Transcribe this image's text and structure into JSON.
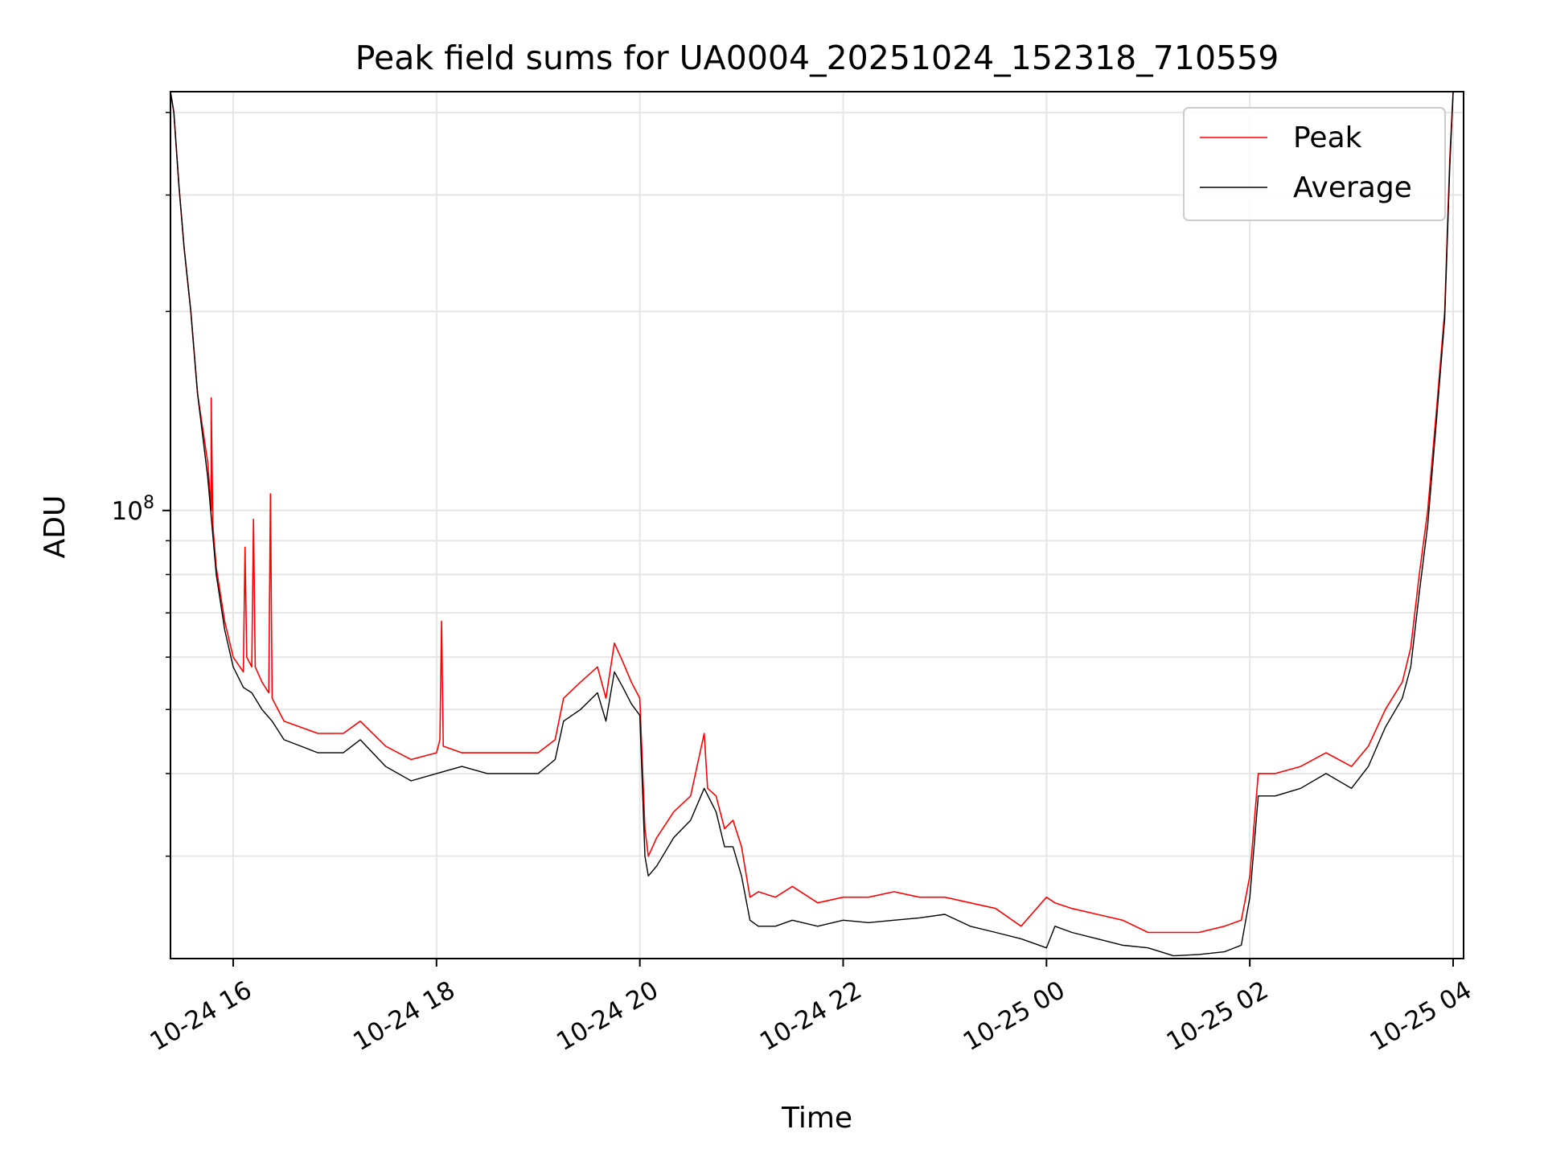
{
  "chart_data": {
    "type": "line",
    "title": "Peak field sums for UA0004_20251024_152318_710559",
    "xlabel": "Time",
    "ylabel": "ADU",
    "y_scale": "log",
    "ylim": [
      21000000,
      430000000
    ],
    "xlim": [
      "2025-10-24 15:23",
      "2025-10-25 04:00"
    ],
    "grid": true,
    "legend_position": "top-right",
    "x_ticks": [
      {
        "value": "2025-10-24 16:00",
        "label": "10-24 16"
      },
      {
        "value": "2025-10-24 18:00",
        "label": "10-24 18"
      },
      {
        "value": "2025-10-24 20:00",
        "label": "10-24 20"
      },
      {
        "value": "2025-10-24 22:00",
        "label": "10-24 22"
      },
      {
        "value": "2025-10-25 00:00",
        "label": "10-25 00"
      },
      {
        "value": "2025-10-25 02:00",
        "label": "10-25 02"
      },
      {
        "value": "2025-10-25 04:00",
        "label": "10-25 04"
      }
    ],
    "y_ticks": [
      {
        "value": 100000000,
        "label_base": "10",
        "label_exp": "8"
      }
    ],
    "series": [
      {
        "name": "Peak",
        "color": "#ff0000",
        "x": [
          "2025-10-24 15:23",
          "2025-10-24 15:25",
          "2025-10-24 15:28",
          "2025-10-24 15:31",
          "2025-10-24 15:35",
          "2025-10-24 15:39",
          "2025-10-24 15:45",
          "2025-10-24 15:47",
          "2025-10-24 15:47",
          "2025-10-24 15:48",
          "2025-10-24 15:50",
          "2025-10-24 15:55",
          "2025-10-24 16:00",
          "2025-10-24 16:06",
          "2025-10-24 16:07",
          "2025-10-24 16:08",
          "2025-10-24 16:11",
          "2025-10-24 16:12",
          "2025-10-24 16:13",
          "2025-10-24 16:17",
          "2025-10-24 16:21",
          "2025-10-24 16:22",
          "2025-10-24 16:23",
          "2025-10-24 16:30",
          "2025-10-24 16:40",
          "2025-10-24 16:50",
          "2025-10-24 17:05",
          "2025-10-24 17:15",
          "2025-10-24 17:30",
          "2025-10-24 17:45",
          "2025-10-24 18:00",
          "2025-10-24 18:02",
          "2025-10-24 18:03",
          "2025-10-24 18:04",
          "2025-10-24 18:15",
          "2025-10-24 18:30",
          "2025-10-24 18:45",
          "2025-10-24 19:00",
          "2025-10-24 19:10",
          "2025-10-24 19:15",
          "2025-10-24 19:25",
          "2025-10-24 19:35",
          "2025-10-24 19:40",
          "2025-10-24 19:45",
          "2025-10-24 19:50",
          "2025-10-24 19:55",
          "2025-10-24 20:00",
          "2025-10-24 20:03",
          "2025-10-24 20:05",
          "2025-10-24 20:10",
          "2025-10-24 20:20",
          "2025-10-24 20:30",
          "2025-10-24 20:38",
          "2025-10-24 20:40",
          "2025-10-24 20:45",
          "2025-10-24 20:50",
          "2025-10-24 20:55",
          "2025-10-24 21:00",
          "2025-10-24 21:05",
          "2025-10-24 21:10",
          "2025-10-24 21:20",
          "2025-10-24 21:30",
          "2025-10-24 21:45",
          "2025-10-24 22:00",
          "2025-10-24 22:15",
          "2025-10-24 22:30",
          "2025-10-24 22:45",
          "2025-10-24 23:00",
          "2025-10-24 23:15",
          "2025-10-24 23:30",
          "2025-10-24 23:45",
          "2025-10-25 00:00",
          "2025-10-25 00:05",
          "2025-10-25 00:15",
          "2025-10-25 00:30",
          "2025-10-25 00:45",
          "2025-10-25 01:00",
          "2025-10-25 01:15",
          "2025-10-25 01:30",
          "2025-10-25 01:45",
          "2025-10-25 01:55",
          "2025-10-25 02:00",
          "2025-10-25 02:05",
          "2025-10-25 02:15",
          "2025-10-25 02:30",
          "2025-10-25 02:45",
          "2025-10-25 03:00",
          "2025-10-25 03:10",
          "2025-10-25 03:20",
          "2025-10-25 03:30",
          "2025-10-25 03:35",
          "2025-10-25 03:40",
          "2025-10-25 03:45",
          "2025-10-25 03:50",
          "2025-10-25 03:55",
          "2025-10-25 03:58",
          "2025-10-25 04:00"
        ],
        "y": [
          430000000,
          400000000,
          310000000,
          250000000,
          200000000,
          150000000,
          118000000,
          100000000,
          148000000,
          95000000,
          82000000,
          68000000,
          60000000,
          57000000,
          88000000,
          60000000,
          58000000,
          97000000,
          58000000,
          55000000,
          53000000,
          106000000,
          52000000,
          48000000,
          47000000,
          46000000,
          46000000,
          48000000,
          44000000,
          42000000,
          43000000,
          45000000,
          68000000,
          44000000,
          43000000,
          43000000,
          43000000,
          43000000,
          45000000,
          52000000,
          55000000,
          58000000,
          52000000,
          63000000,
          59000000,
          55000000,
          52000000,
          33000000,
          30000000,
          32000000,
          35000000,
          37000000,
          46000000,
          38000000,
          37000000,
          33000000,
          34000000,
          31000000,
          26000000,
          26500000,
          26000000,
          27000000,
          25500000,
          26000000,
          26000000,
          26500000,
          26000000,
          26000000,
          25500000,
          25000000,
          23500000,
          26000000,
          25500000,
          25000000,
          24500000,
          24000000,
          23000000,
          23000000,
          23000000,
          23500000,
          24000000,
          28000000,
          40000000,
          40000000,
          41000000,
          43000000,
          41000000,
          44000000,
          50000000,
          55000000,
          62000000,
          80000000,
          100000000,
          140000000,
          200000000,
          340000000,
          430000000
        ]
      },
      {
        "name": "Average",
        "color": "#000000",
        "x": [
          "2025-10-24 15:23",
          "2025-10-24 15:25",
          "2025-10-24 15:28",
          "2025-10-24 15:31",
          "2025-10-24 15:35",
          "2025-10-24 15:39",
          "2025-10-24 15:45",
          "2025-10-24 15:47",
          "2025-10-24 15:50",
          "2025-10-24 15:55",
          "2025-10-24 16:00",
          "2025-10-24 16:06",
          "2025-10-24 16:11",
          "2025-10-24 16:17",
          "2025-10-24 16:23",
          "2025-10-24 16:30",
          "2025-10-24 16:40",
          "2025-10-24 16:50",
          "2025-10-24 17:05",
          "2025-10-24 17:15",
          "2025-10-24 17:30",
          "2025-10-24 17:45",
          "2025-10-24 18:00",
          "2025-10-24 18:15",
          "2025-10-24 18:30",
          "2025-10-24 18:45",
          "2025-10-24 19:00",
          "2025-10-24 19:10",
          "2025-10-24 19:15",
          "2025-10-24 19:25",
          "2025-10-24 19:35",
          "2025-10-24 19:40",
          "2025-10-24 19:45",
          "2025-10-24 19:50",
          "2025-10-24 19:55",
          "2025-10-24 20:00",
          "2025-10-24 20:03",
          "2025-10-24 20:05",
          "2025-10-24 20:10",
          "2025-10-24 20:20",
          "2025-10-24 20:30",
          "2025-10-24 20:38",
          "2025-10-24 20:45",
          "2025-10-24 20:50",
          "2025-10-24 20:55",
          "2025-10-24 21:00",
          "2025-10-24 21:05",
          "2025-10-24 21:10",
          "2025-10-24 21:20",
          "2025-10-24 21:30",
          "2025-10-24 21:45",
          "2025-10-24 22:00",
          "2025-10-24 22:15",
          "2025-10-24 22:30",
          "2025-10-24 22:45",
          "2025-10-24 23:00",
          "2025-10-24 23:15",
          "2025-10-24 23:30",
          "2025-10-24 23:45",
          "2025-10-25 00:00",
          "2025-10-25 00:05",
          "2025-10-25 00:15",
          "2025-10-25 00:30",
          "2025-10-25 00:45",
          "2025-10-25 01:00",
          "2025-10-25 01:15",
          "2025-10-25 01:30",
          "2025-10-25 01:45",
          "2025-10-25 01:55",
          "2025-10-25 02:00",
          "2025-10-25 02:05",
          "2025-10-25 02:15",
          "2025-10-25 02:30",
          "2025-10-25 02:45",
          "2025-10-25 03:00",
          "2025-10-25 03:10",
          "2025-10-25 03:20",
          "2025-10-25 03:30",
          "2025-10-25 03:35",
          "2025-10-25 03:40",
          "2025-10-25 03:45",
          "2025-10-25 03:50",
          "2025-10-25 03:55",
          "2025-10-25 03:58",
          "2025-10-25 04:00"
        ],
        "y": [
          430000000,
          400000000,
          310000000,
          250000000,
          200000000,
          150000000,
          112000000,
          98000000,
          80000000,
          66000000,
          58000000,
          54000000,
          53000000,
          50000000,
          48000000,
          45000000,
          44000000,
          43000000,
          43000000,
          45000000,
          41000000,
          39000000,
          40000000,
          41000000,
          40000000,
          40000000,
          40000000,
          42000000,
          48000000,
          50000000,
          53000000,
          48000000,
          57000000,
          54000000,
          51000000,
          49000000,
          30000000,
          28000000,
          29000000,
          32000000,
          34000000,
          38000000,
          35000000,
          31000000,
          31000000,
          28000000,
          24000000,
          23500000,
          23500000,
          24000000,
          23500000,
          24000000,
          23800000,
          24000000,
          24200000,
          24500000,
          23500000,
          23000000,
          22500000,
          21800000,
          23500000,
          23000000,
          22500000,
          22000000,
          21800000,
          21200000,
          21300000,
          21500000,
          22000000,
          26000000,
          37000000,
          37000000,
          38000000,
          40000000,
          38000000,
          41000000,
          47000000,
          52000000,
          58000000,
          75000000,
          95000000,
          135000000,
          195000000,
          330000000,
          430000000
        ]
      }
    ]
  }
}
